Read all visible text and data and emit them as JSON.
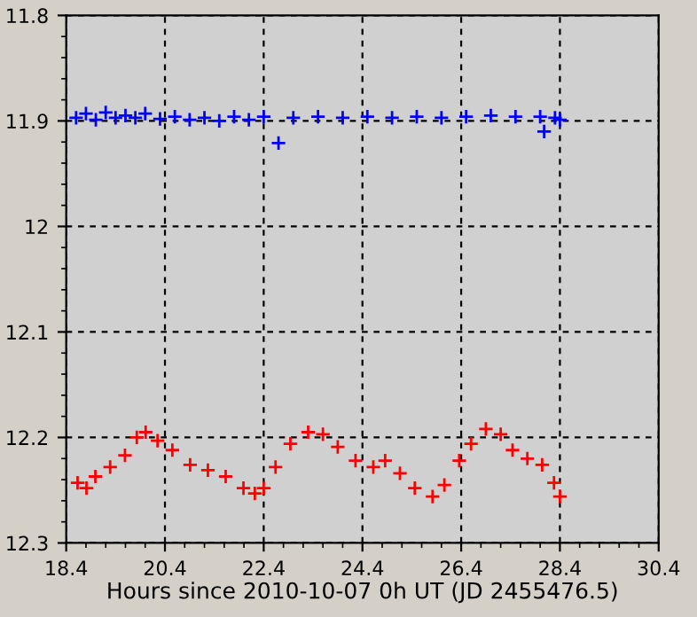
{
  "chart_data": {
    "type": "scatter",
    "xlabel": "Hours since 2010-10-07 0h UT (JD 2455476.5)",
    "xlim": [
      18.4,
      30.4
    ],
    "xticks": [
      18.4,
      20.4,
      22.4,
      24.4,
      26.4,
      28.4,
      30.4
    ],
    "ylim": [
      12.3,
      11.8
    ],
    "yticks": [
      11.8,
      11.9,
      12,
      12.1,
      12.2,
      12.3
    ],
    "grid": true,
    "marker": "cross",
    "series": [
      {
        "color": "#0000ff",
        "x": [
          18.6,
          18.8,
          19.0,
          19.2,
          19.4,
          19.6,
          19.8,
          20.0,
          20.3,
          20.6,
          20.9,
          21.2,
          21.5,
          21.8,
          22.1,
          22.4,
          22.7,
          23.0,
          23.5,
          24.0,
          24.5,
          25.0,
          25.5,
          26.0,
          26.5,
          27.0,
          27.5,
          28.0,
          28.08,
          28.3,
          28.4
        ],
        "values": [
          11.897,
          11.893,
          11.899,
          11.892,
          11.897,
          11.895,
          11.897,
          11.893,
          11.898,
          11.896,
          11.899,
          11.897,
          11.9,
          11.896,
          11.899,
          11.896,
          11.921,
          11.897,
          11.896,
          11.897,
          11.896,
          11.897,
          11.896,
          11.897,
          11.896,
          11.895,
          11.896,
          11.896,
          11.91,
          11.897,
          11.899
        ]
      },
      {
        "color": "#ff0000",
        "x": [
          18.63,
          18.81,
          18.99,
          19.29,
          19.59,
          19.83,
          20.01,
          20.25,
          20.55,
          20.91,
          21.27,
          21.63,
          21.99,
          22.22,
          22.4,
          22.64,
          22.94,
          23.3,
          23.6,
          23.9,
          24.26,
          24.62,
          24.86,
          25.16,
          25.46,
          25.82,
          26.06,
          26.36,
          26.6,
          26.9,
          27.2,
          27.44,
          27.74,
          28.04,
          28.28,
          28.4
        ],
        "values": [
          12.243,
          12.248,
          12.237,
          12.228,
          12.217,
          12.2,
          12.195,
          12.203,
          12.212,
          12.226,
          12.231,
          12.237,
          12.248,
          12.253,
          12.248,
          12.228,
          12.206,
          12.195,
          12.197,
          12.209,
          12.222,
          12.228,
          12.222,
          12.234,
          12.248,
          12.256,
          12.245,
          12.222,
          12.206,
          12.192,
          12.197,
          12.212,
          12.22,
          12.226,
          12.243,
          12.256
        ]
      }
    ]
  }
}
